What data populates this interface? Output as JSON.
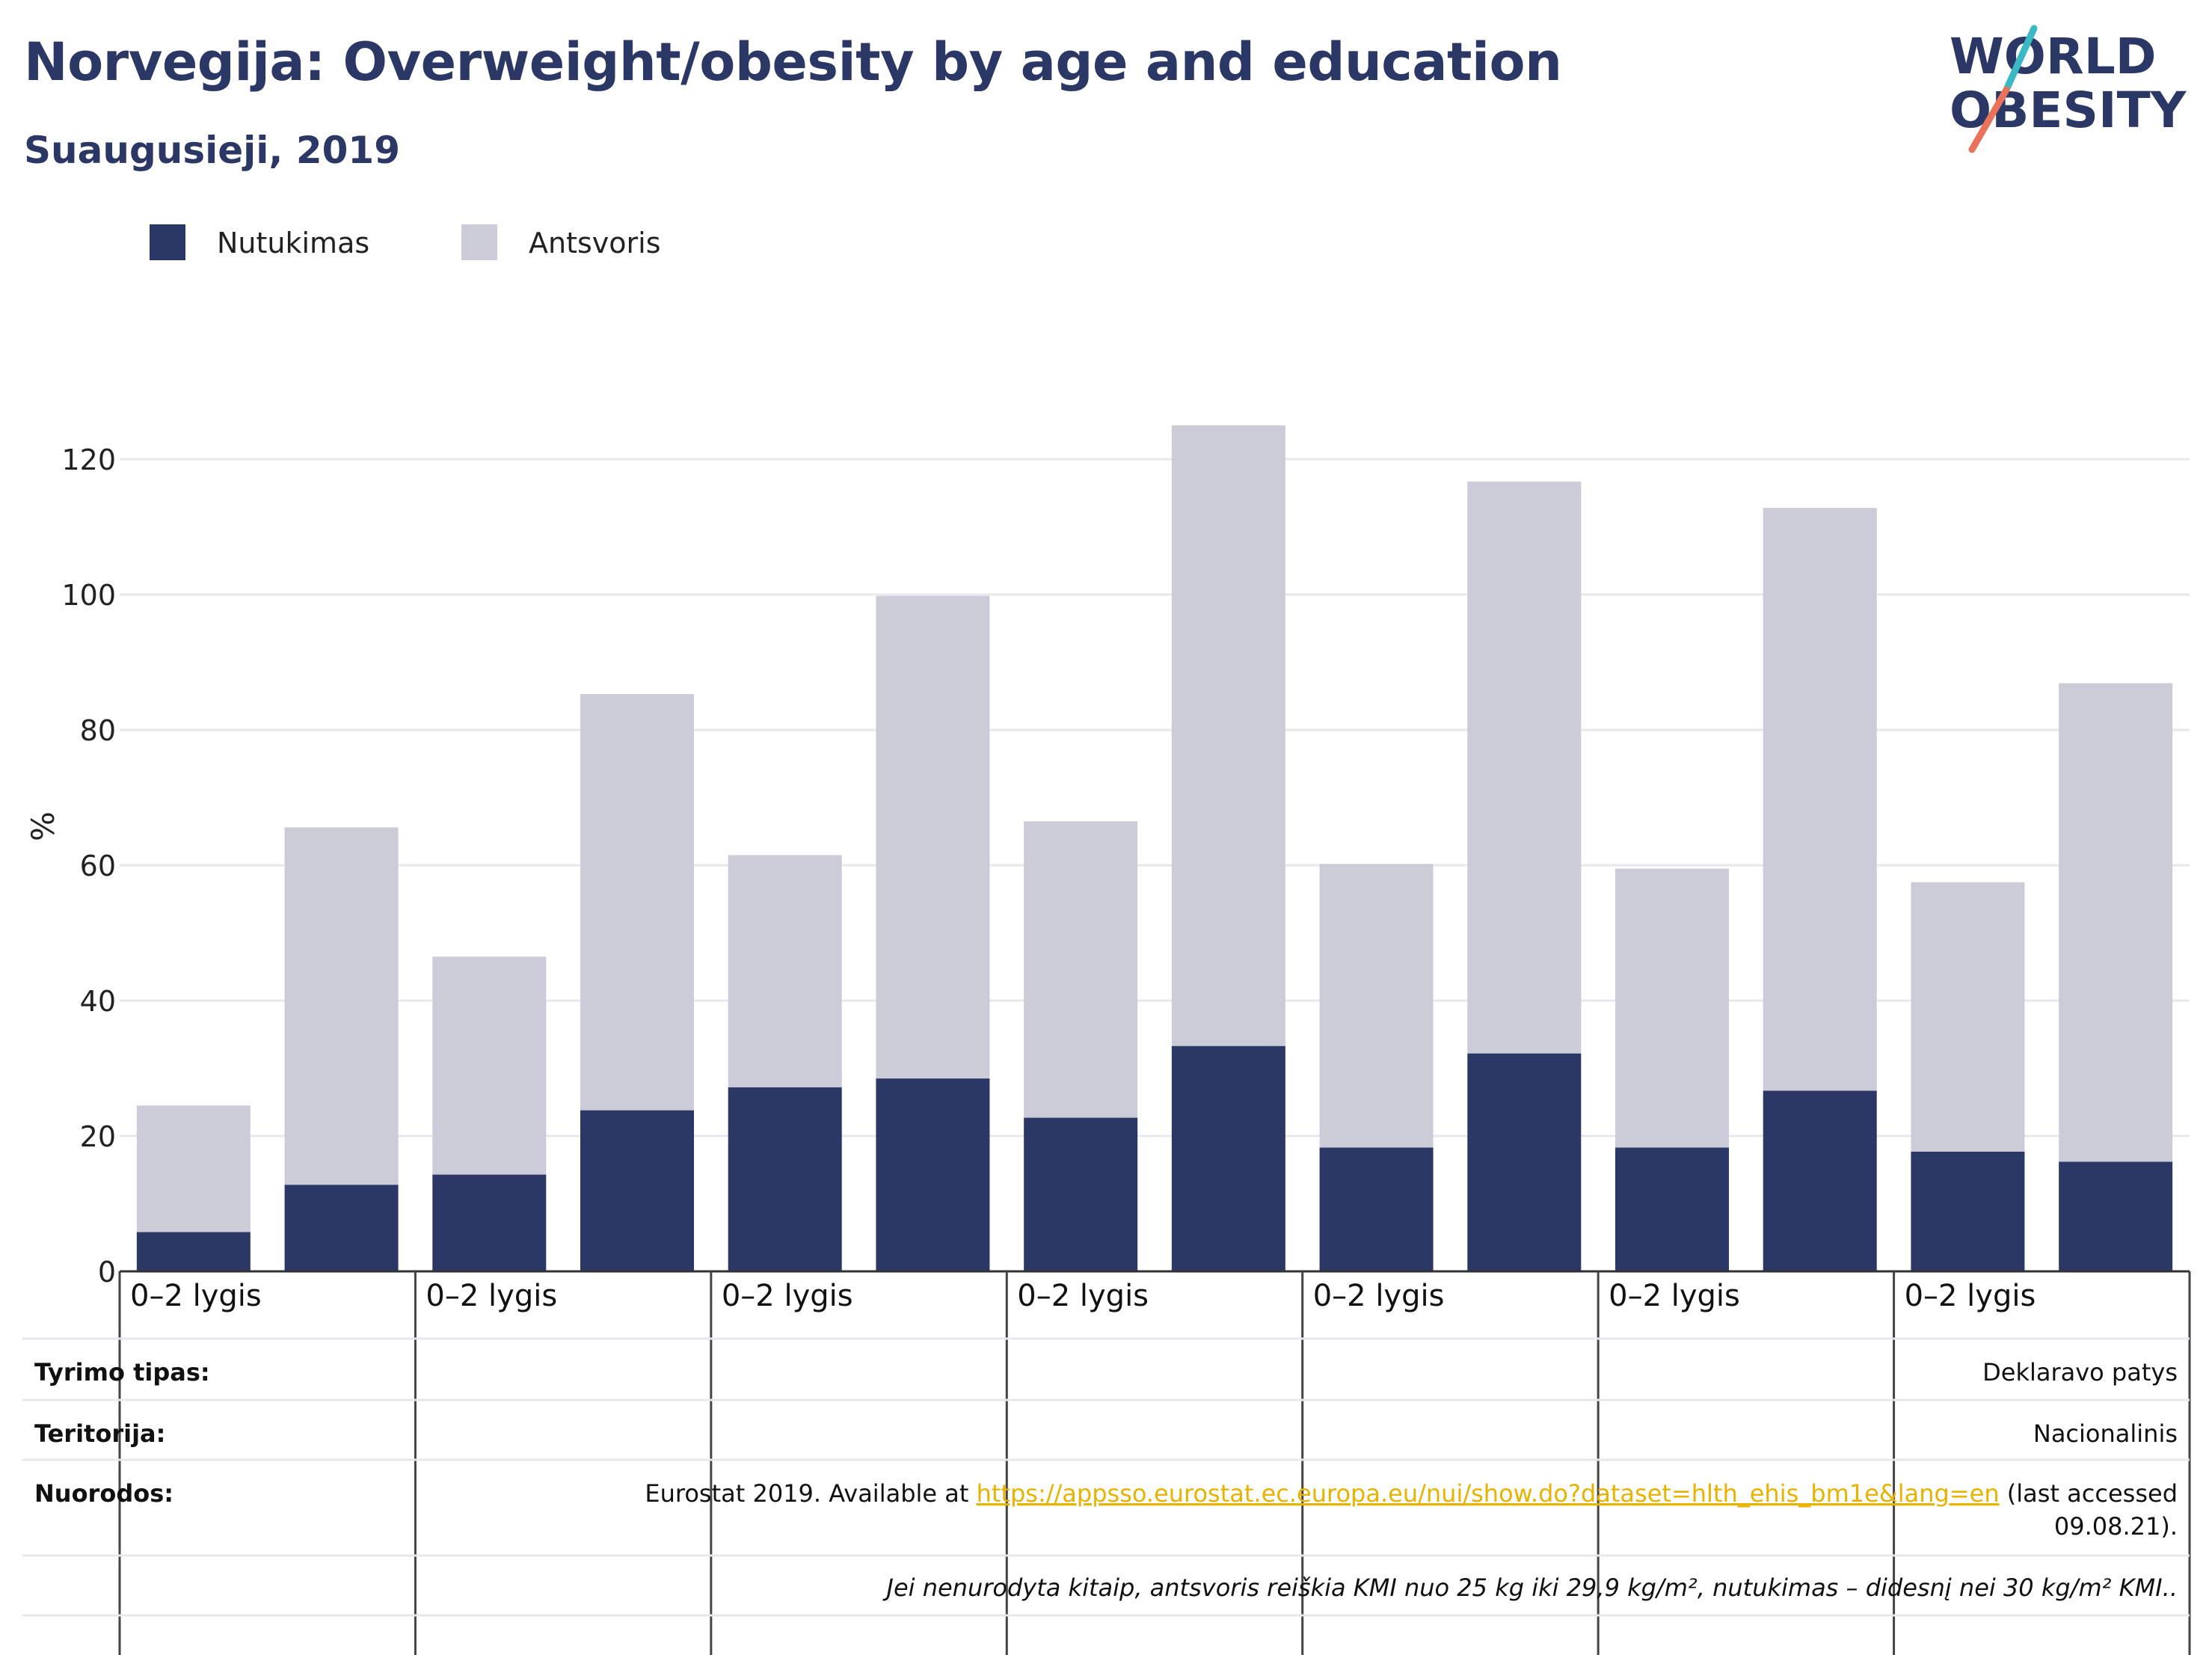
{
  "header": {
    "title": "Norvegija: Overweight/obesity by age and education",
    "subtitle": "Suaugusieji, 2019"
  },
  "logo": {
    "line1": "WORLD",
    "line2": "OBESITY",
    "colors": {
      "text": "#2b3866",
      "accent_teal": "#3bb8c4",
      "accent_coral": "#e8735a"
    }
  },
  "chart_data": {
    "type": "bar",
    "stacked": true,
    "title": "",
    "ylabel": "%",
    "ylim": [
      0,
      125
    ],
    "yticks": [
      0,
      20,
      40,
      60,
      80,
      100,
      120
    ],
    "grid": true,
    "legend_position": "top-left",
    "group_label": "0–2 lygis",
    "group_count": 7,
    "bars_per_group": 2,
    "series": [
      {
        "name": "Nutukimas",
        "color": "#2b3866",
        "values": [
          5.8,
          12.8,
          14.3,
          23.8,
          27.2,
          28.5,
          22.7,
          33.3,
          18.3,
          32.2,
          18.3,
          26.7,
          17.7,
          16.2
        ]
      },
      {
        "name": "Antsvoris",
        "color": "#cbccd8",
        "values": [
          18.7,
          52.8,
          32.2,
          61.5,
          34.3,
          71.3,
          43.8,
          91.7,
          41.9,
          84.5,
          41.2,
          86.1,
          39.8,
          70.7
        ]
      }
    ]
  },
  "notes": {
    "rows": [
      {
        "label": "Tyrimo tipas:",
        "value": "Deklaravo patys"
      },
      {
        "label": "Teritorija:",
        "value": "Nacionalinis"
      },
      {
        "label": "Nuorodos:",
        "prefix": "Eurostat 2019. Available at ",
        "link": "https://appsso.eurostat.ec.europa.eu/nui/show.do?dataset=hlth_ehis_bm1e&lang=en",
        "suffix": " (last accessed",
        "line2": "09.08.21)."
      }
    ],
    "footnote": "Jei nenurodyta kitaip, antsvoris reiškia KMI nuo 25 kg iki 29,9 kg/m², nutukimas – didesnį nei 30 kg/m² KMI.."
  }
}
